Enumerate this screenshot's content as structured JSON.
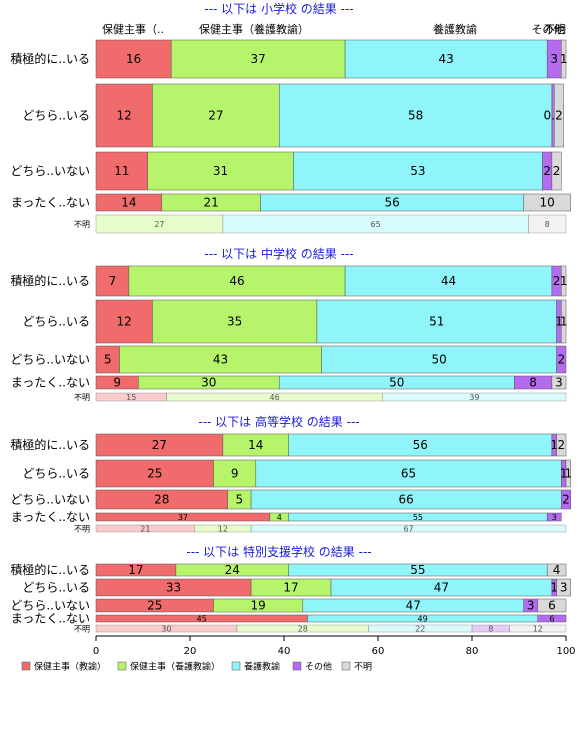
{
  "chart_data": {
    "type": "bar",
    "orientation": "horizontal",
    "stacked": true,
    "xlim": [
      0,
      100
    ],
    "xticks": [
      0,
      20,
      40,
      60,
      80,
      100
    ],
    "colors": [
      "#f06b6b",
      "#b6f56b",
      "#8ff5fa",
      "#b56bf0",
      "#d9d9d9"
    ],
    "column_headers": [
      "保健主事（..",
      "保健主事（養護教諭）",
      "養護教諭",
      "その他",
      "不明"
    ],
    "legend": {
      "position": "bottom",
      "entries": [
        "保健主事（教諭）",
        "保健主事（養護教諭）",
        "養護教諭",
        "その他",
        "不明"
      ]
    },
    "panels": [
      {
        "title": "--- 以下は 小学校 の結果 ---",
        "rows": [
          {
            "label": "積極的に..いる",
            "values": [
              16,
              37,
              43,
              3,
              1
            ]
          },
          {
            "label": "どちら..いる",
            "values": [
              12,
              27,
              58,
              0.5,
              2
            ]
          },
          {
            "label": "どちら..いない",
            "values": [
              11,
              31,
              53,
              2,
              2
            ]
          },
          {
            "label": "まったく..ない",
            "values": [
              14,
              21,
              56,
              0,
              10
            ]
          },
          {
            "label": "不明",
            "values": [
              0,
              27,
              65,
              0,
              8
            ]
          }
        ]
      },
      {
        "title": "--- 以下は 中学校 の結果 ---",
        "rows": [
          {
            "label": "積極的に..いる",
            "values": [
              7,
              46,
              44,
              2,
              1
            ]
          },
          {
            "label": "どちら..いる",
            "values": [
              12,
              35,
              51,
              1,
              1
            ]
          },
          {
            "label": "どちら..いない",
            "values": [
              5,
              43,
              50,
              2,
              0
            ]
          },
          {
            "label": "まったく..ない",
            "values": [
              9,
              30,
              50,
              8,
              3
            ]
          },
          {
            "label": "不明",
            "values": [
              15,
              46,
              39,
              0,
              0
            ]
          }
        ]
      },
      {
        "title": "--- 以下は 高等学校 の結果 ---",
        "rows": [
          {
            "label": "積極的に..いる",
            "values": [
              27,
              14,
              56,
              1,
              2
            ]
          },
          {
            "label": "どちら..いる",
            "values": [
              25,
              9,
              65,
              1,
              1
            ]
          },
          {
            "label": "どちら..いない",
            "values": [
              28,
              5,
              66,
              2,
              0
            ]
          },
          {
            "label": "まったく..ない",
            "values": [
              37,
              4,
              55,
              3,
              0
            ]
          },
          {
            "label": "不明",
            "values": [
              21,
              12,
              67,
              0,
              0
            ]
          }
        ]
      },
      {
        "title": "--- 以下は 特別支援学校 の結果 ---",
        "rows": [
          {
            "label": "積極的に..いる",
            "values": [
              17,
              24,
              55,
              0,
              4
            ]
          },
          {
            "label": "どちら..いる",
            "values": [
              33,
              17,
              47,
              1,
              3
            ]
          },
          {
            "label": "どちら..いない",
            "values": [
              25,
              19,
              47,
              3,
              6
            ]
          },
          {
            "label": "まったく..ない",
            "values": [
              45,
              0,
              49,
              6,
              0
            ]
          },
          {
            "label": "不明",
            "values": [
              30,
              28,
              22,
              8,
              12
            ]
          }
        ]
      }
    ]
  }
}
